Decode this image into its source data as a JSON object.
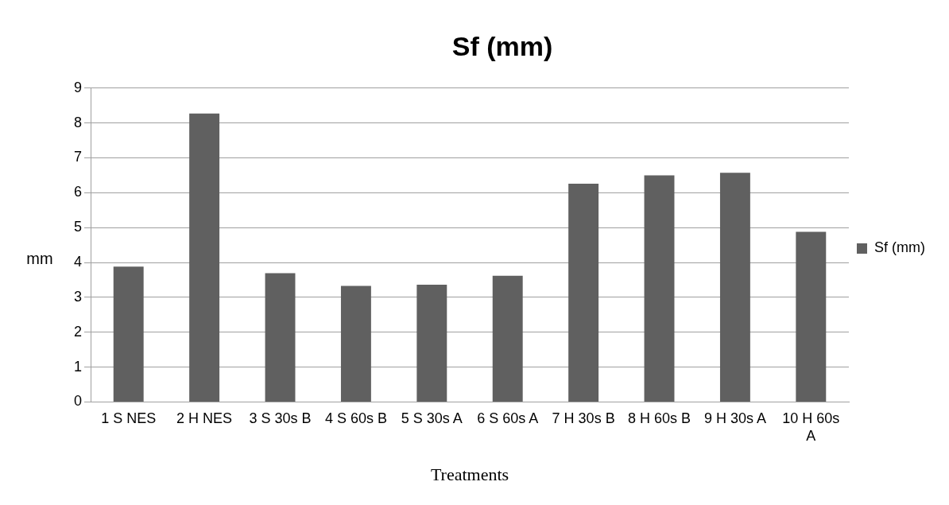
{
  "chart_data": {
    "type": "bar",
    "title": "Sf (mm)",
    "xlabel": "Treatments",
    "ylabel": "mm",
    "categories": [
      "1 S NES",
      "2 H NES",
      "3 S 30s B",
      "4 S 60s B",
      "5 S 30s A",
      "6 S 60s A",
      "7 H 30s B",
      "8 H 60s B",
      "9 H 30s A",
      "10 H 60s A"
    ],
    "series": [
      {
        "name": "Sf (mm)",
        "color": "#606060",
        "values": [
          3.88,
          8.27,
          3.69,
          3.33,
          3.36,
          3.62,
          6.26,
          6.5,
          6.57,
          4.88
        ]
      }
    ],
    "ylim": [
      0,
      9
    ],
    "yticks": [
      0,
      1,
      2,
      3,
      4,
      5,
      6,
      7,
      8,
      9
    ],
    "grid": "y",
    "legend": "right"
  }
}
